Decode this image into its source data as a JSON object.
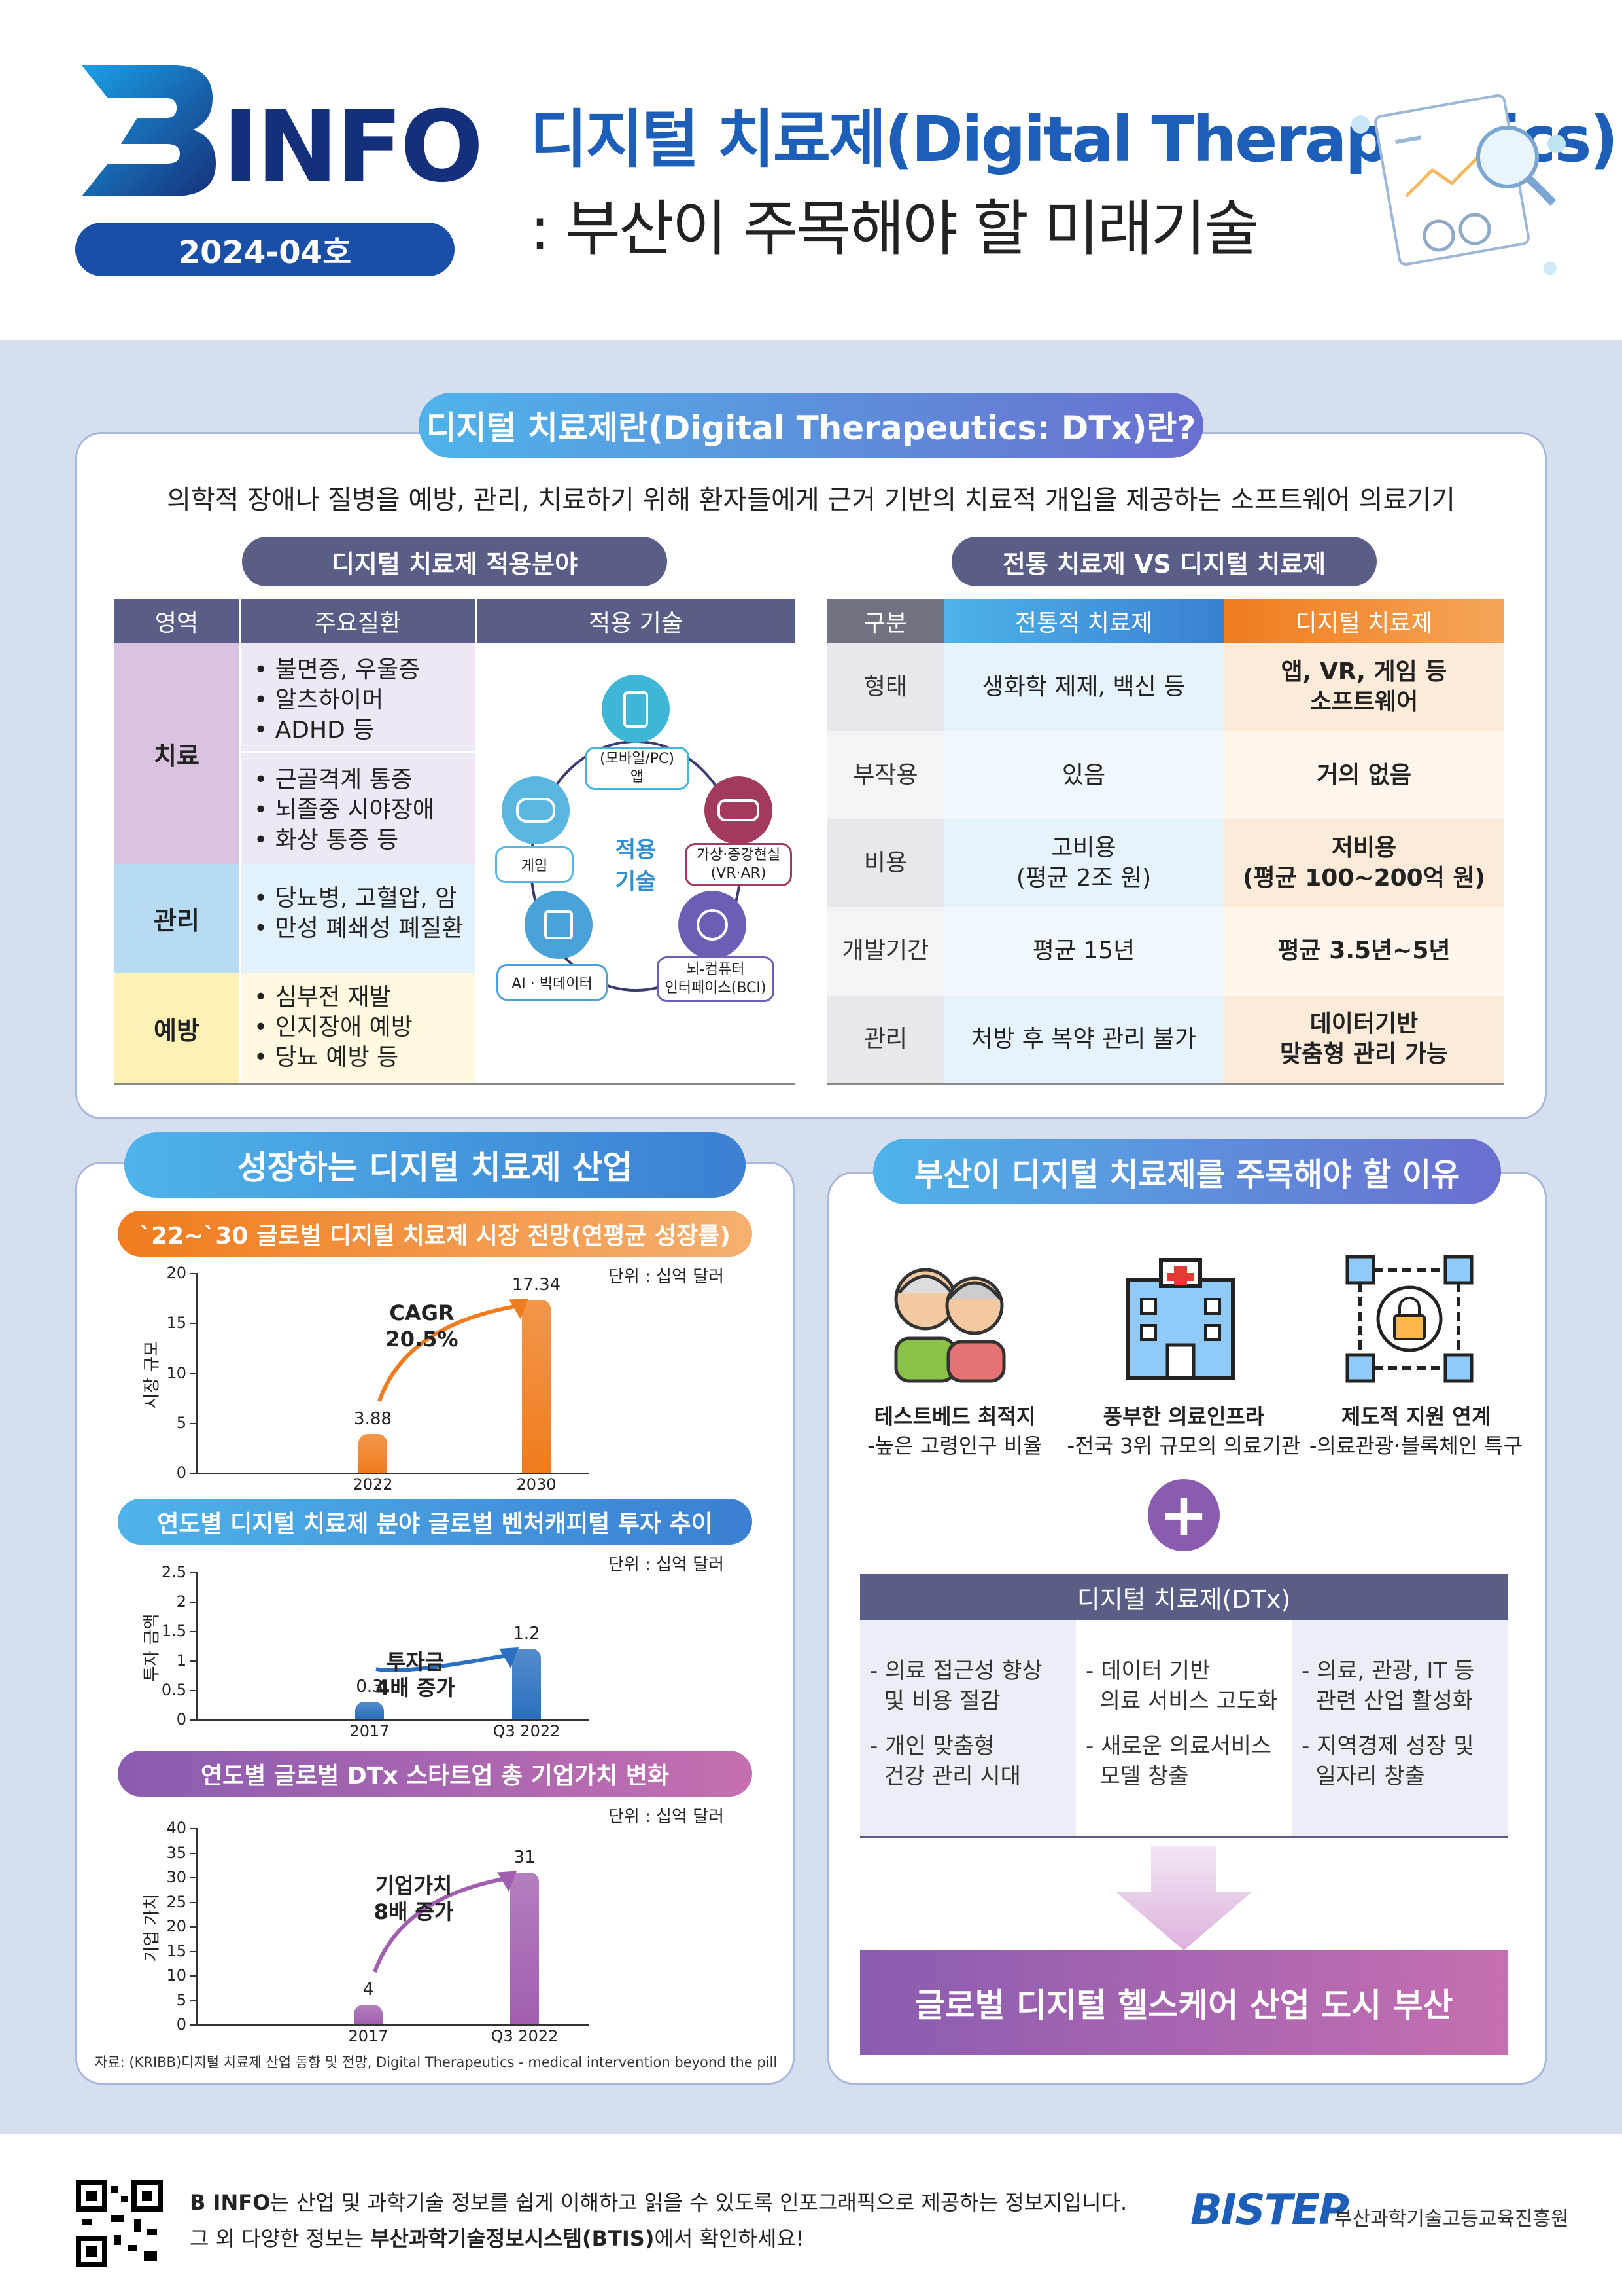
{
  "header": {
    "logo_text": "INFO",
    "issue": "2024-04호",
    "title_line1": "디지털 치료제(Digital Therapeutics)",
    "title_line2": ": 부산이 주목해야 할 미래기술"
  },
  "colors": {
    "navy": "#1a3a8c",
    "blue": "#1d5fb8",
    "bg": "#d6dff0",
    "orange": "#f07c1d",
    "purple": "#8a5cb0",
    "pink": "#c56fb0"
  },
  "definition": {
    "title": "디지털 치료제란(Digital Therapeutics: DTx)란?",
    "text": "의학적 장애나 질병을 예방, 관리, 치료하기 위해 환자들에게 근거 기반의 치료적 개입을 제공하는 소프트웨어 의료기기"
  },
  "fields": {
    "title": "디지털 치료제 적용분야",
    "headers": [
      "영역",
      "주요질환",
      "적용 기술"
    ],
    "rows": [
      {
        "area": "치료",
        "items1": [
          "• 불면증, 우울증",
          "• 알츠하이머",
          "• ADHD 등"
        ],
        "items2": [
          "• 근골격계 통증",
          "• 뇌졸중 시야장애",
          "• 화상 통증 등"
        ]
      },
      {
        "area": "관리",
        "items": [
          "• 당뇨병, 고혈압, 암",
          "• 만성 폐쇄성 폐질환"
        ]
      },
      {
        "area": "예방",
        "items": [
          "• 심부전 재발",
          "• 인지장애 예방",
          "• 당뇨 예방 등"
        ]
      }
    ],
    "tech": {
      "center": "적용\n기술",
      "mobile": "(모바일/PC)\n앱",
      "vr": "가상·증강현실\n(VR·AR)",
      "bci": "뇌-컴퓨터\n인터페이스(BCI)",
      "ai": "AI · 빅데이터",
      "game": "게임"
    }
  },
  "compare": {
    "title": "전통 치료제 VS 디지털 치료제",
    "headers": [
      "구분",
      "전통적 치료제",
      "디지털 치료제"
    ],
    "rows": [
      [
        "형태",
        "생화학 제제, 백신 등",
        "앱, VR, 게임 등\n소프트웨어"
      ],
      [
        "부작용",
        "있음",
        "거의 없음"
      ],
      [
        "비용",
        "고비용\n(평균 2조 원)",
        "저비용\n(평균 100~200억 원)"
      ],
      [
        "개발기간",
        "평균 15년",
        "평균 3.5년~5년"
      ],
      [
        "관리",
        "처방 후 복약 관리 불가",
        "데이터기반\n맞춤형 관리 가능"
      ]
    ]
  },
  "growth": {
    "title": "성장하는 디지털 치료제 산업",
    "source": "자료: (KRIBB)디지털 치료제 산업 동향 및 전망, Digital Therapeutics - medical intervention beyond the pill"
  },
  "chart_data": [
    {
      "type": "bar",
      "title": "`22~`30 글로벌 디지털 치료제 시장 전망(연평균 성장률)",
      "unit": "단위 : 십억 달러",
      "ylabel": "시장 규모",
      "categories": [
        "2022",
        "2030"
      ],
      "values": [
        3.88,
        17.34
      ],
      "ylim": [
        0,
        20
      ],
      "yticks": [
        "0",
        "5",
        "10",
        "15",
        "20"
      ],
      "annotation": "CAGR\n20.5%",
      "color": "#f07c1d"
    },
    {
      "type": "bar",
      "title": "연도별 디지털 치료제 분야 글로벌 벤처캐피털 투자 추이",
      "unit": "단위 : 십억 달러",
      "ylabel": "투자 금액",
      "categories": [
        "2017",
        "Q3 2022"
      ],
      "values": [
        0.3,
        1.2
      ],
      "ylim": [
        0,
        2.5
      ],
      "yticks": [
        "0",
        "0.5",
        "1",
        "1.5",
        "2",
        "2.5"
      ],
      "annotation": "투자금\n4배 증가",
      "color": "#2a6fc0"
    },
    {
      "type": "bar",
      "title": "연도별 글로벌 DTx 스타트업 총 기업가치 변화",
      "unit": "단위 : 십억 달러",
      "ylabel": "기업 가치",
      "categories": [
        "2017",
        "Q3 2022"
      ],
      "values": [
        4,
        31
      ],
      "ylim": [
        0,
        40
      ],
      "yticks": [
        "0",
        "5",
        "10",
        "15",
        "20",
        "25",
        "30",
        "35",
        "40"
      ],
      "annotation": "기업가치\n8배 증가",
      "color": "#a05fae"
    }
  ],
  "reasons": {
    "title": "부산이 디지털 치료제를 주목해야 할 이유",
    "items": [
      {
        "title": "테스트베드 최적지",
        "sub": "-높은 고령인구 비율"
      },
      {
        "title": "풍부한 의료인프라",
        "sub": "-전국 3위 규모의 의료기관"
      },
      {
        "title": "제도적 지원 연계",
        "sub": "-의료관광·블록체인 특구"
      }
    ],
    "plus": "+",
    "dtx_title": "디지털 치료제(DTx)",
    "benefits": [
      [
        "- 의료 접근성 향상\n  및 비용 절감",
        "- 개인 맞춤형\n  건강 관리 시대"
      ],
      [
        "- 데이터 기반\n  의료 서비스 고도화",
        "- 새로운 의료서비스\n  모델 창출"
      ],
      [
        "- 의료, 관광, IT 등\n  관련 산업 활성화",
        "- 지역경제 성장 및\n  일자리 창출"
      ]
    ],
    "conclusion": "글로벌 디지털 헬스케어 산업 도시 부산"
  },
  "footer": {
    "line1_bold": "B INFO",
    "line1_rest": "는 산업 및 과학기술 정보를 쉽게 이해하고 읽을 수 있도록 인포그래픽으로 제공하는 정보지입니다.",
    "line2_pre": "그 외 다양한 정보는 ",
    "line2_bold": "부산과학기술정보시스템(BTIS)",
    "line2_post": "에서 확인하세요!",
    "org_logo": "BISTEP",
    "org_name": "부산과학기술고등교육진흥원"
  }
}
